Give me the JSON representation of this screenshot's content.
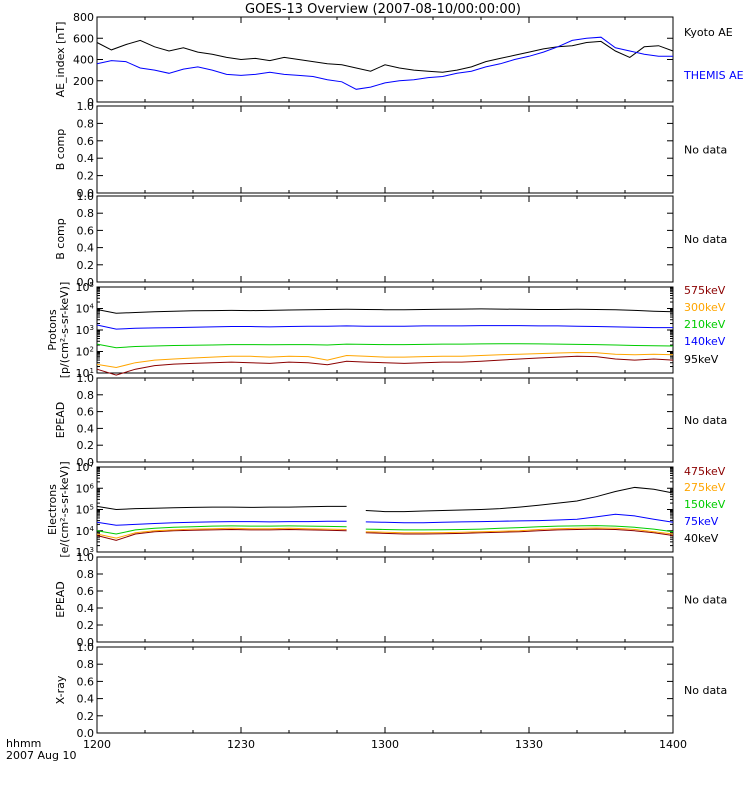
{
  "title": "GOES-13 Overview (2007-08-10/00:00:00)",
  "time_axis": {
    "ticks": [
      "1200",
      "1230",
      "1300",
      "1330",
      "1400"
    ],
    "label_line1": "hhmm",
    "label_line2": "2007 Aug 10"
  },
  "chart_data": [
    {
      "type": "line",
      "id": "ae",
      "ylabel": "AE_index [nT]",
      "yscale": "linear",
      "ylim": [
        0,
        800
      ],
      "yticks": [
        "0",
        "200",
        "400",
        "600",
        "800"
      ],
      "x": [
        0,
        3,
        6,
        9,
        12,
        15,
        18,
        21,
        24,
        27,
        30,
        33,
        36,
        39,
        42,
        45,
        48,
        51,
        54,
        57,
        60,
        63,
        66,
        69,
        72,
        75,
        78,
        81,
        84,
        87,
        90,
        93,
        96,
        99,
        102,
        105,
        108,
        111,
        114,
        117,
        120
      ],
      "series": [
        {
          "name": "Kyoto AE",
          "color": "#000000",
          "values": [
            560,
            490,
            540,
            580,
            520,
            480,
            510,
            470,
            450,
            420,
            400,
            410,
            390,
            420,
            400,
            380,
            360,
            350,
            320,
            290,
            350,
            320,
            300,
            290,
            280,
            300,
            330,
            380,
            410,
            440,
            470,
            500,
            520,
            530,
            560,
            570,
            480,
            420,
            520,
            530,
            480
          ]
        },
        {
          "name": "THEMIS AE",
          "color": "#0000ff",
          "values": [
            360,
            390,
            380,
            320,
            300,
            270,
            310,
            330,
            300,
            260,
            250,
            260,
            280,
            260,
            250,
            240,
            210,
            190,
            120,
            140,
            180,
            200,
            210,
            230,
            240,
            270,
            290,
            330,
            360,
            400,
            430,
            470,
            520,
            580,
            600,
            610,
            510,
            480,
            450,
            430,
            430
          ]
        }
      ]
    },
    {
      "type": "line",
      "id": "bcomp1",
      "ylabel": "B comp",
      "yscale": "linear",
      "ylim": [
        0,
        1
      ],
      "yticks": [
        "0.0",
        "0.2",
        "0.4",
        "0.6",
        "0.8",
        "1.0"
      ],
      "series": [],
      "note": "No data"
    },
    {
      "type": "line",
      "id": "bcomp2",
      "ylabel": "B comp",
      "yscale": "linear",
      "ylim": [
        0,
        1
      ],
      "yticks": [
        "0.0",
        "0.2",
        "0.4",
        "0.6",
        "0.8",
        "1.0"
      ],
      "series": [],
      "note": "No data"
    },
    {
      "type": "line",
      "id": "protons",
      "ylabel": "Protons",
      "ylabel2": "[p/(cm²-s-sr-keV)]",
      "yscale": "log",
      "ylim": [
        10,
        100000
      ],
      "yticks": [
        10,
        100,
        1000,
        10000,
        100000
      ],
      "x": [
        0,
        4,
        8,
        12,
        16,
        20,
        24,
        28,
        32,
        36,
        40,
        44,
        48,
        52,
        56,
        60,
        64,
        68,
        72,
        76,
        80,
        84,
        88,
        92,
        96,
        100,
        104,
        108,
        112,
        116,
        120
      ],
      "series": [
        {
          "name": "575keV",
          "color": "#8b0000",
          "values": [
            15,
            8,
            15,
            22,
            26,
            28,
            30,
            32,
            30,
            28,
            32,
            30,
            24,
            35,
            32,
            30,
            28,
            30,
            32,
            32,
            35,
            40,
            45,
            50,
            55,
            60,
            58,
            45,
            40,
            45,
            40
          ]
        },
        {
          "name": "300keV",
          "color": "#ffa500",
          "values": [
            25,
            18,
            30,
            40,
            45,
            50,
            55,
            60,
            60,
            55,
            60,
            58,
            40,
            65,
            60,
            55,
            55,
            58,
            60,
            60,
            65,
            70,
            75,
            80,
            85,
            90,
            88,
            75,
            70,
            75,
            70
          ]
        },
        {
          "name": "210keV",
          "color": "#00cc00",
          "values": [
            220,
            150,
            170,
            180,
            190,
            195,
            200,
            210,
            210,
            205,
            210,
            210,
            200,
            220,
            215,
            210,
            210,
            215,
            220,
            220,
            225,
            230,
            230,
            225,
            220,
            215,
            210,
            200,
            190,
            185,
            180
          ]
        },
        {
          "name": "140keV",
          "color": "#0000ff",
          "values": [
            1700,
            1100,
            1200,
            1250,
            1300,
            1350,
            1400,
            1450,
            1450,
            1400,
            1450,
            1500,
            1500,
            1550,
            1500,
            1500,
            1500,
            1550,
            1550,
            1550,
            1600,
            1600,
            1600,
            1550,
            1550,
            1500,
            1450,
            1400,
            1350,
            1300,
            1300
          ]
        },
        {
          "name": "95keV",
          "color": "#000000",
          "values": [
            9000,
            6000,
            6500,
            7000,
            7500,
            7800,
            8000,
            8200,
            8000,
            8200,
            8500,
            8800,
            9000,
            9200,
            9000,
            8800,
            8800,
            9000,
            9200,
            9400,
            9600,
            9400,
            9200,
            9000,
            9000,
            9200,
            9000,
            8800,
            8200,
            7500,
            7000
          ]
        }
      ]
    },
    {
      "type": "line",
      "id": "epead1",
      "ylabel": "EPEAD",
      "yscale": "linear",
      "ylim": [
        0,
        1
      ],
      "yticks": [
        "0.0",
        "0.2",
        "0.4",
        "0.6",
        "0.8",
        "1.0"
      ],
      "series": [],
      "note": "No data"
    },
    {
      "type": "line",
      "id": "electrons",
      "ylabel": "Electrons",
      "ylabel2": "[e/(cm²-s-sr-keV)]",
      "yscale": "log",
      "ylim": [
        1000,
        10000000
      ],
      "yticks": [
        1000,
        10000,
        100000,
        1000000,
        10000000
      ],
      "gap": [
        52,
        56
      ],
      "x": [
        0,
        4,
        8,
        12,
        16,
        20,
        24,
        28,
        32,
        36,
        40,
        44,
        48,
        52,
        56,
        60,
        64,
        68,
        72,
        76,
        80,
        84,
        88,
        92,
        96,
        100,
        104,
        108,
        112,
        116,
        120
      ],
      "series": [
        {
          "name": "475keV",
          "color": "#8b0000",
          "values": [
            6000,
            3500,
            7000,
            9000,
            10000,
            10500,
            11000,
            11500,
            11000,
            11000,
            11500,
            11000,
            10500,
            10000,
            8000,
            7500,
            7000,
            7000,
            7200,
            7500,
            8000,
            8500,
            9000,
            10000,
            11000,
            11500,
            12000,
            11500,
            10000,
            8000,
            6000
          ]
        },
        {
          "name": "275keV",
          "color": "#ffa500",
          "values": [
            7000,
            4500,
            8000,
            10000,
            11000,
            12000,
            12500,
            13000,
            12500,
            12500,
            13000,
            12500,
            12000,
            11500,
            9000,
            8500,
            8000,
            8000,
            8200,
            8500,
            9000,
            9500,
            10000,
            11500,
            12500,
            13000,
            13500,
            13000,
            11500,
            9000,
            7000
          ]
        },
        {
          "name": "150keV",
          "color": "#00cc00",
          "values": [
            10000,
            7000,
            11000,
            13000,
            14500,
            15500,
            16500,
            17000,
            16500,
            16500,
            17000,
            16500,
            16000,
            15500,
            12000,
            11500,
            11000,
            11000,
            11200,
            11500,
            12000,
            13000,
            14000,
            15500,
            16500,
            17000,
            17500,
            16500,
            14500,
            12000,
            9000
          ]
        },
        {
          "name": "75keV",
          "color": "#0000ff",
          "values": [
            25000,
            18000,
            20000,
            22000,
            24000,
            25000,
            26000,
            27000,
            27000,
            26000,
            27000,
            27000,
            28000,
            28000,
            26000,
            25000,
            24000,
            24000,
            25000,
            26000,
            27000,
            28000,
            29000,
            30000,
            32000,
            35000,
            45000,
            60000,
            50000,
            35000,
            25000
          ]
        },
        {
          "name": "40keV",
          "color": "#000000",
          "values": [
            140000,
            100000,
            110000,
            115000,
            120000,
            125000,
            130000,
            130000,
            125000,
            130000,
            130000,
            135000,
            140000,
            140000,
            90000,
            80000,
            80000,
            85000,
            90000,
            95000,
            100000,
            110000,
            130000,
            160000,
            200000,
            250000,
            400000,
            700000,
            1100000,
            900000,
            600000
          ]
        }
      ]
    },
    {
      "type": "line",
      "id": "epead2",
      "ylabel": "EPEAD",
      "yscale": "linear",
      "ylim": [
        0,
        1
      ],
      "yticks": [
        "0.0",
        "0.2",
        "0.4",
        "0.6",
        "0.8",
        "1.0"
      ],
      "series": [],
      "note": "No data"
    },
    {
      "type": "line",
      "id": "xray",
      "ylabel": "X-ray",
      "yscale": "linear",
      "ylim": [
        0,
        1
      ],
      "yticks": [
        "0.0",
        "0.2",
        "0.4",
        "0.6",
        "0.8",
        "1.0"
      ],
      "series": [],
      "note": "No data"
    }
  ]
}
